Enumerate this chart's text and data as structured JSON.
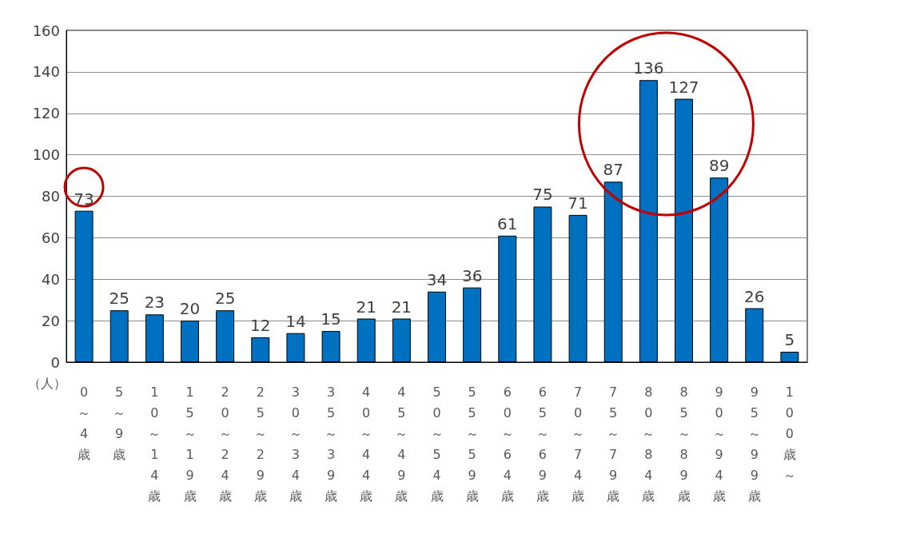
{
  "chart_data": {
    "type": "bar",
    "ylabel": "（人）",
    "categories": [
      "0～4歳",
      "5～9歳",
      "10～14歳",
      "15～19歳",
      "20～24歳",
      "25～29歳",
      "30～34歳",
      "35～39歳",
      "40～44歳",
      "45～49歳",
      "50～54歳",
      "55～59歳",
      "60～64歳",
      "65～69歳",
      "70～74歳",
      "75～79歳",
      "80～84歳",
      "85～89歳",
      "90～94歳",
      "95～99歳",
      "100歳～"
    ],
    "values": [
      73,
      25,
      23,
      20,
      25,
      12,
      14,
      15,
      21,
      21,
      34,
      36,
      61,
      75,
      71,
      87,
      136,
      127,
      89,
      26,
      5
    ],
    "color": "#0070c0",
    "ylim": [
      0,
      160
    ],
    "yticks": [
      0,
      20,
      40,
      60,
      80,
      100,
      120,
      140,
      160
    ],
    "grid": "y",
    "data_labels": true
  }
}
